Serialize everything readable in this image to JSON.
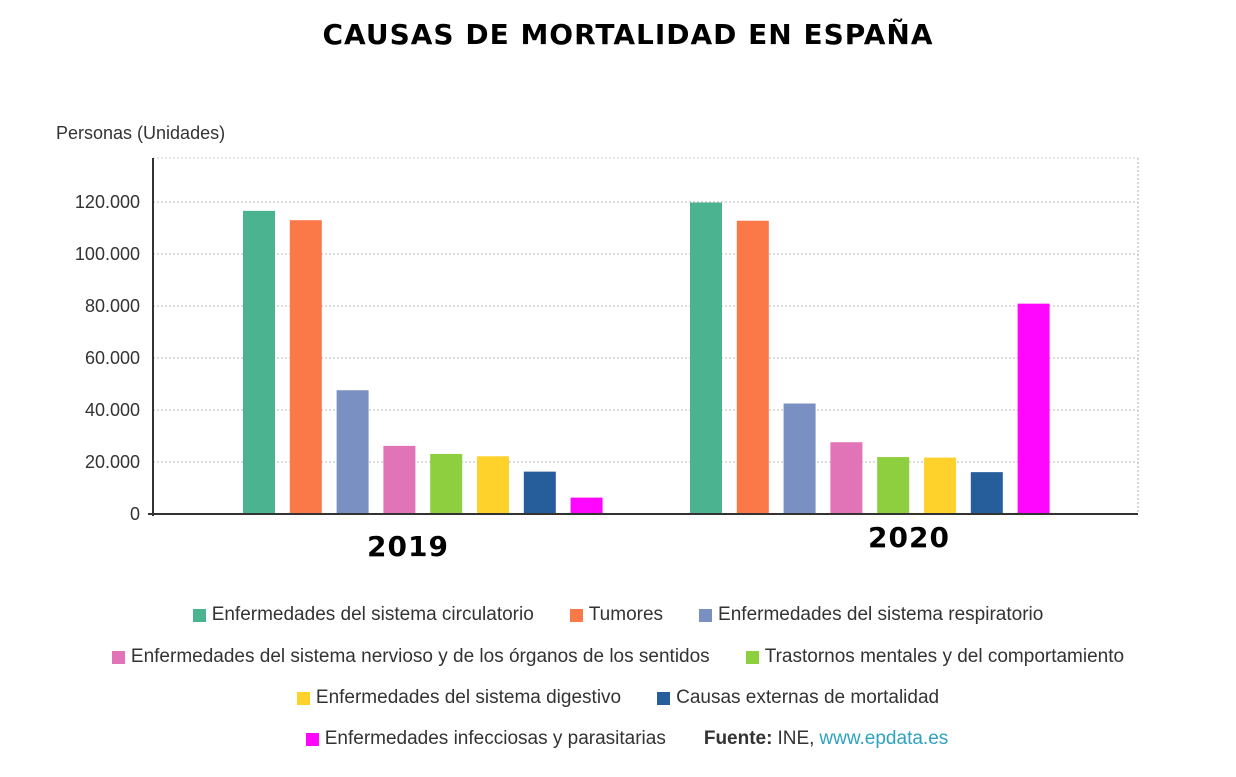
{
  "title": "CAUSAS DE MORTALIDAD EN ESPAÑA",
  "chart_data": {
    "type": "bar",
    "title": "CAUSAS DE MORTALIDAD EN ESPAÑA",
    "ylabel": "Personas (Unidades)",
    "xlabel": "",
    "categories": [
      "2019",
      "2020"
    ],
    "ylim": [
      0,
      130000
    ],
    "yticks": [
      "0",
      "20.000",
      "40.000",
      "60.000",
      "80.000",
      "100.000",
      "120.000"
    ],
    "yticks_values": [
      0,
      20000,
      40000,
      60000,
      80000,
      100000,
      120000
    ],
    "grid": true,
    "legend_position": "bottom",
    "series": [
      {
        "name": "Enfermedades del sistema circulatorio",
        "color": "#4cb390",
        "values": [
          116600,
          119800
        ]
      },
      {
        "name": "Tumores",
        "color": "#fb7849",
        "values": [
          113000,
          112800
        ]
      },
      {
        "name": "Enfermedades del sistema respiratorio",
        "color": "#7a8fc2",
        "values": [
          47600,
          42500
        ]
      },
      {
        "name": "Enfermedades del sistema nervioso y de los órganos de los sentidos",
        "color": "#e173b7",
        "values": [
          26200,
          27600
        ]
      },
      {
        "name": "Trastornos mentales y del comportamiento",
        "color": "#8ecf3f",
        "values": [
          23100,
          21900
        ]
      },
      {
        "name": "Enfermedades del sistema digestivo",
        "color": "#ffd22b",
        "values": [
          22200,
          21700
        ]
      },
      {
        "name": "Causas externas de mortalidad",
        "color": "#265d9b",
        "values": [
          16300,
          16100
        ]
      },
      {
        "name": "Enfermedades infecciosas y parasitarias",
        "color": "#ff07ff",
        "values": [
          6300,
          80900
        ]
      }
    ]
  },
  "source": {
    "label": "Fuente:",
    "org": "INE,",
    "link": "www.epdata.es"
  }
}
